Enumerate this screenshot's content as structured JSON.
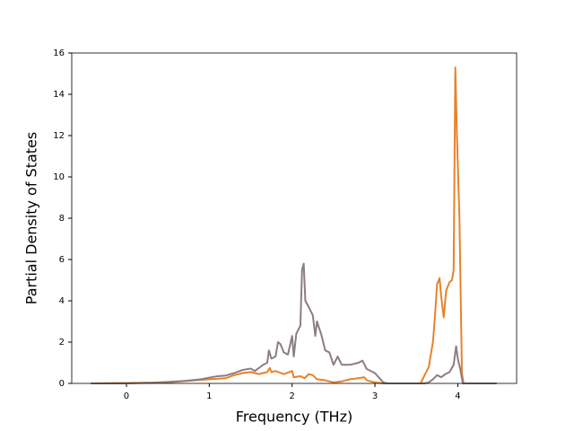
{
  "chart_data": {
    "type": "line",
    "x_label": "Frequency (THz)",
    "y_label": "Partial Density of States",
    "xlim": [
      -0.66,
      4.71
    ],
    "ylim": [
      0,
      16
    ],
    "xticks": [
      0,
      1,
      2,
      3,
      4
    ],
    "yticks": [
      0,
      2,
      4,
      6,
      8,
      10,
      12,
      14,
      16
    ],
    "series": [
      {
        "color": "#e8822a",
        "x": [
          -0.43,
          0.5,
          1.0,
          1.2,
          1.3,
          1.4,
          1.5,
          1.6,
          1.7,
          1.73,
          1.75,
          1.8,
          1.9,
          1.97,
          2.0,
          2.02,
          2.1,
          2.15,
          2.2,
          2.25,
          2.3,
          2.4,
          2.5,
          2.6,
          2.7,
          2.8,
          2.87,
          2.9,
          3.0,
          3.1,
          3.55,
          3.6,
          3.65,
          3.7,
          3.72,
          3.75,
          3.78,
          3.8,
          3.83,
          3.86,
          3.9,
          3.93,
          3.95,
          3.97,
          3.99,
          4.02,
          4.05,
          4.07,
          4.47
        ],
        "values": [
          0,
          0.05,
          0.2,
          0.25,
          0.4,
          0.5,
          0.55,
          0.45,
          0.55,
          0.75,
          0.55,
          0.6,
          0.45,
          0.55,
          0.6,
          0.3,
          0.35,
          0.25,
          0.45,
          0.4,
          0.2,
          0.15,
          0.05,
          0.1,
          0.2,
          0.25,
          0.3,
          0.15,
          0.05,
          0,
          0,
          0.4,
          0.8,
          2.0,
          3.0,
          4.8,
          5.1,
          4.2,
          3.2,
          4.5,
          4.9,
          5.0,
          5.5,
          15.3,
          12,
          8,
          0.5,
          0,
          0
        ]
      },
      {
        "color": "#8c7d80",
        "x": [
          -0.43,
          0,
          0.3,
          0.5,
          0.7,
          0.9,
          1.0,
          1.1,
          1.2,
          1.3,
          1.4,
          1.5,
          1.55,
          1.6,
          1.65,
          1.7,
          1.72,
          1.75,
          1.8,
          1.83,
          1.86,
          1.9,
          1.95,
          2.0,
          2.02,
          2.05,
          2.1,
          2.12,
          2.14,
          2.16,
          2.2,
          2.25,
          2.28,
          2.3,
          2.35,
          2.4,
          2.45,
          2.5,
          2.55,
          2.6,
          2.7,
          2.8,
          2.85,
          2.9,
          3.0,
          3.1,
          3.15,
          3.6,
          3.65,
          3.7,
          3.75,
          3.8,
          3.85,
          3.9,
          3.95,
          3.98,
          4.0,
          4.03,
          4.06,
          4.47
        ],
        "values": [
          0,
          0,
          0.03,
          0.07,
          0.12,
          0.2,
          0.28,
          0.35,
          0.38,
          0.5,
          0.65,
          0.72,
          0.6,
          0.75,
          0.9,
          1.0,
          1.6,
          1.2,
          1.3,
          2.0,
          1.9,
          1.5,
          1.4,
          2.3,
          1.3,
          2.4,
          2.8,
          5.5,
          5.8,
          4.0,
          3.7,
          3.3,
          2.3,
          3.0,
          2.4,
          1.6,
          1.5,
          0.9,
          1.3,
          0.9,
          0.9,
          1.0,
          1.1,
          0.7,
          0.5,
          0.05,
          0,
          0,
          0.05,
          0.2,
          0.4,
          0.3,
          0.45,
          0.55,
          0.9,
          1.8,
          1.2,
          0.7,
          0,
          0
        ]
      }
    ]
  }
}
